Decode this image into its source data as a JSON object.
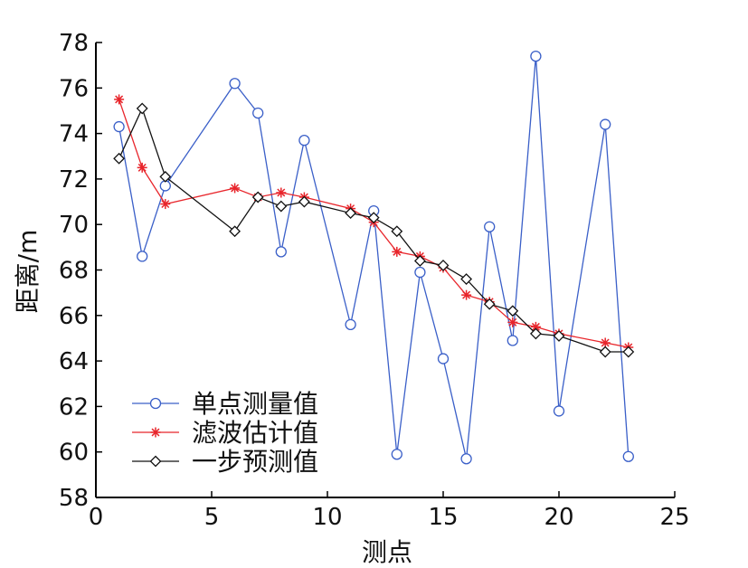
{
  "chart_data": {
    "type": "line",
    "xlabel": "测点",
    "ylabel": "距离/m",
    "xlim": [
      0,
      25
    ],
    "ylim": [
      58,
      78
    ],
    "xticks": [
      0,
      5,
      10,
      15,
      20,
      25
    ],
    "yticks": [
      58,
      60,
      62,
      64,
      66,
      68,
      70,
      72,
      74,
      76,
      78
    ],
    "grid": false,
    "legend_position": "bottom-left",
    "series": [
      {
        "name": "单点测量值",
        "color": "#3a5fc8",
        "marker": "circle",
        "x": [
          1,
          2,
          3,
          6,
          7,
          8,
          9,
          11,
          12,
          13,
          14,
          15,
          16,
          17,
          18,
          19,
          20,
          22,
          23
        ],
        "y": [
          74.3,
          68.6,
          71.7,
          76.2,
          74.9,
          68.8,
          73.7,
          65.6,
          70.6,
          59.9,
          67.9,
          64.1,
          59.7,
          69.9,
          64.9,
          77.4,
          61.8,
          74.4,
          59.8
        ]
      },
      {
        "name": "滤波估计值",
        "color": "#e8252b",
        "marker": "star",
        "x": [
          1,
          2,
          3,
          6,
          7,
          8,
          9,
          11,
          12,
          13,
          14,
          15,
          16,
          17,
          18,
          19,
          20,
          22,
          23
        ],
        "y": [
          75.5,
          72.5,
          70.9,
          71.6,
          71.2,
          71.4,
          71.2,
          70.7,
          70.1,
          68.8,
          68.6,
          68.1,
          66.9,
          66.6,
          65.7,
          65.5,
          65.2,
          64.8,
          64.6
        ]
      },
      {
        "name": "一步预测值",
        "color": "#111111",
        "marker": "diamond",
        "x": [
          1,
          2,
          3,
          6,
          7,
          8,
          9,
          11,
          12,
          13,
          14,
          15,
          16,
          17,
          18,
          19,
          20,
          22,
          23
        ],
        "y": [
          72.9,
          75.1,
          72.1,
          69.7,
          71.2,
          70.8,
          71.0,
          70.5,
          70.3,
          69.7,
          68.4,
          68.2,
          67.6,
          66.5,
          66.2,
          65.2,
          65.1,
          64.4,
          64.4
        ]
      }
    ]
  }
}
